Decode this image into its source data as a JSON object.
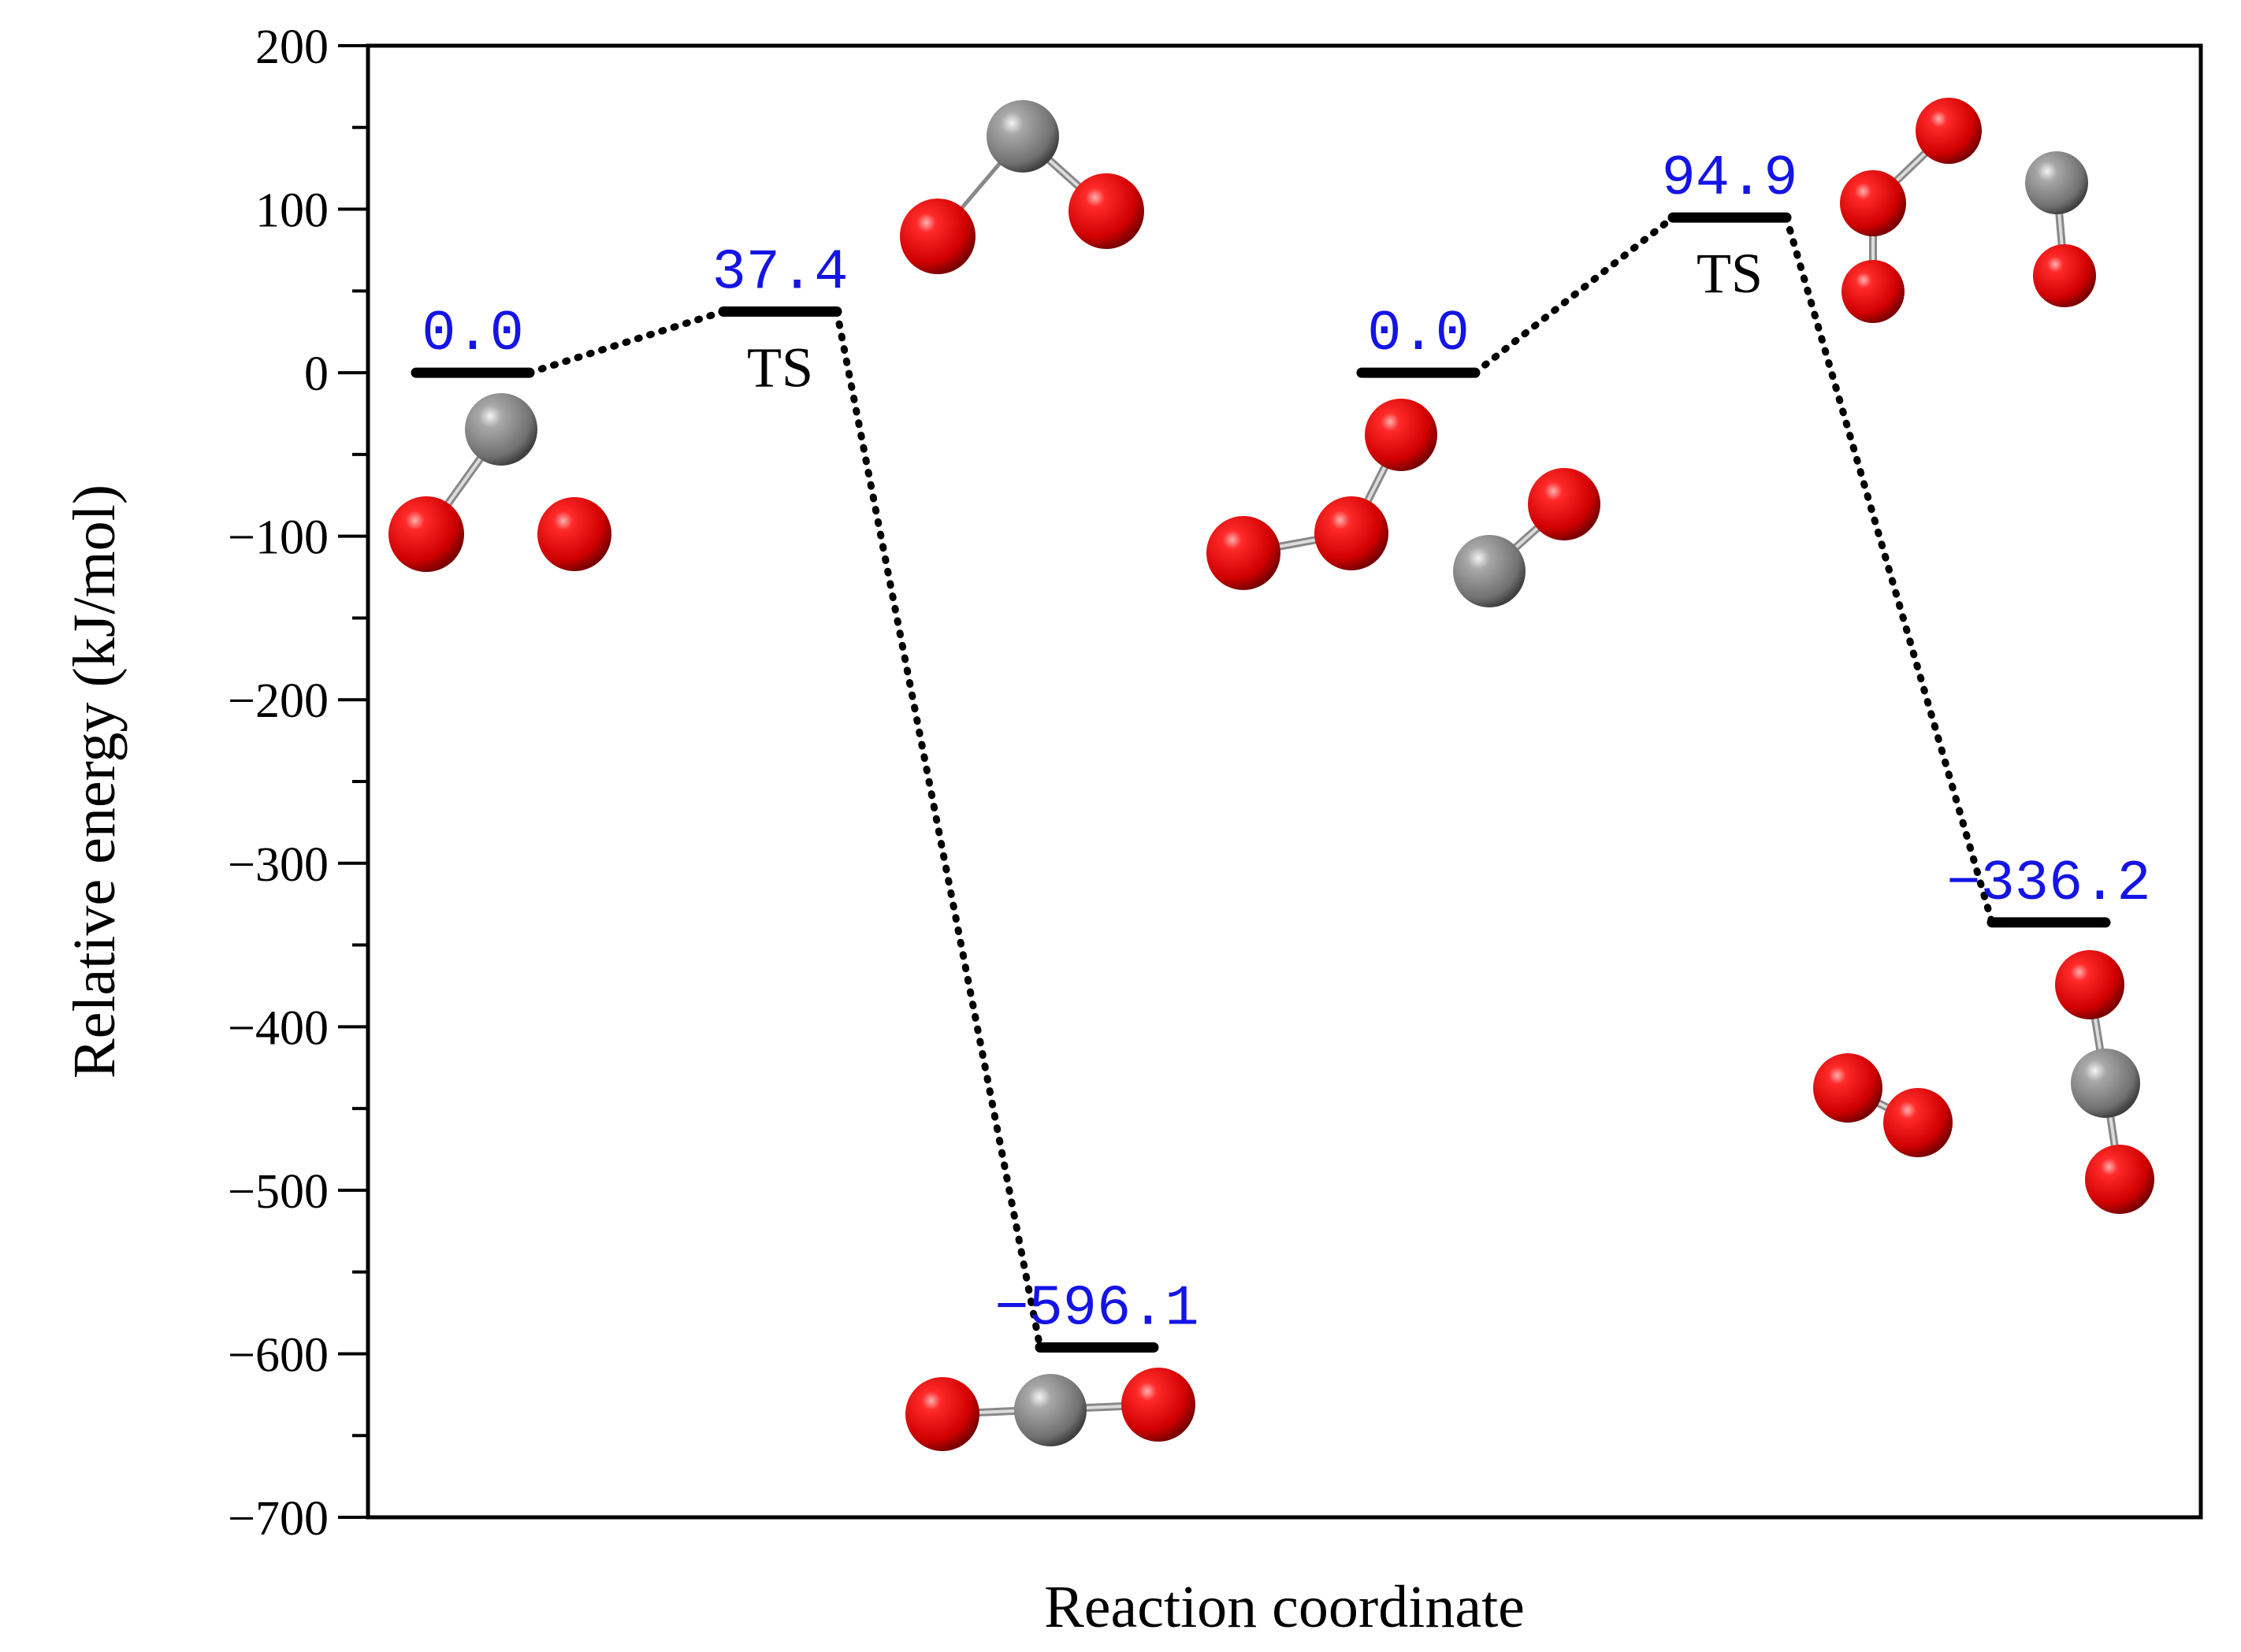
{
  "chart_data": {
    "type": "energy-profile",
    "title": "",
    "xlabel": "Reaction coordinate",
    "ylabel": "Relative energy (kJ/mol)",
    "ylim": [
      -700,
      200
    ],
    "yticks": [
      200,
      100,
      0,
      -100,
      -200,
      -300,
      -400,
      -500,
      -600,
      -700
    ],
    "ytick_labels": [
      "200",
      "100",
      "0",
      "−100",
      "−200",
      "−300",
      "−400",
      "−500",
      "−600",
      "−700"
    ],
    "x_positions": [
      1,
      2,
      3,
      4,
      5,
      6
    ],
    "pathways": [
      {
        "name": "pathway-1",
        "levels": [
          {
            "x": 1,
            "energy": 0.0,
            "label": "0.0",
            "tag": ""
          },
          {
            "x": 2,
            "energy": 37.4,
            "label": "37.4",
            "tag": "TS"
          },
          {
            "x": 3,
            "energy": -596.1,
            "label": "−596.1",
            "tag": ""
          }
        ]
      },
      {
        "name": "pathway-2",
        "levels": [
          {
            "x": 4,
            "energy": 0.0,
            "label": "0.0",
            "tag": ""
          },
          {
            "x": 5,
            "energy": 94.9,
            "label": "94.9",
            "tag": "TS"
          },
          {
            "x": 6,
            "energy": -336.2,
            "label": "−336.2",
            "tag": ""
          }
        ]
      }
    ],
    "colors": {
      "value_label": "#1414e6",
      "level_line": "#000000",
      "oxygen_atom": "#e00000",
      "carbon_atom": "#8a8a8a"
    }
  }
}
